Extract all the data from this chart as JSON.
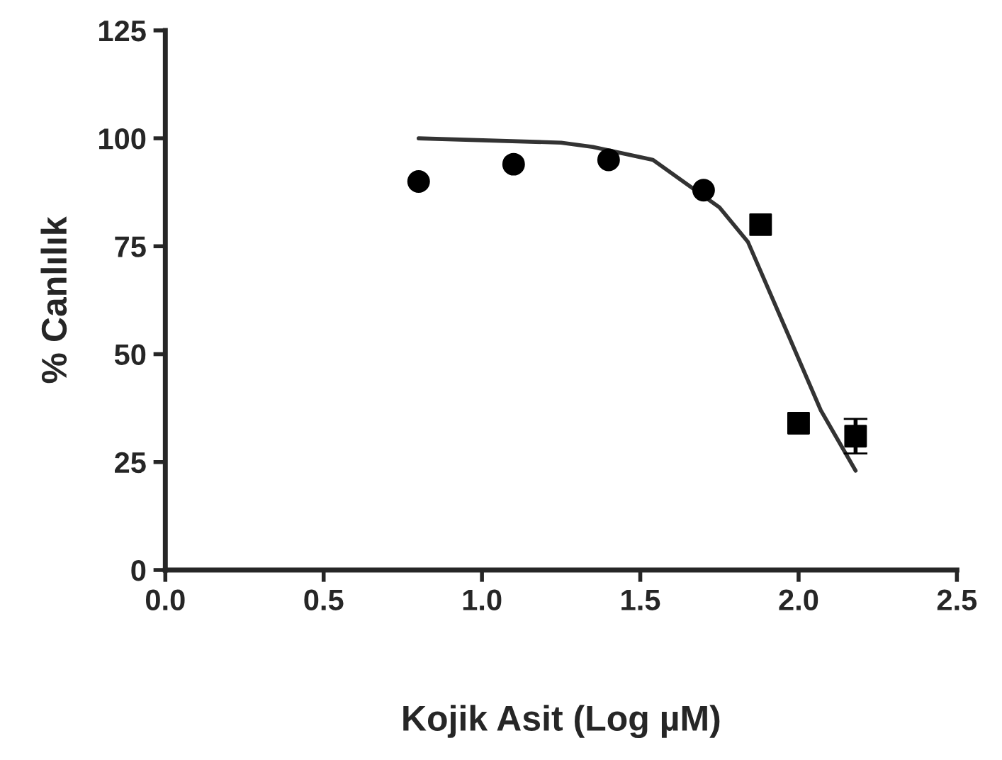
{
  "chart_data": {
    "type": "scatter",
    "xlabel": "Kojik Asit (Log µM)",
    "ylabel": "% Canlılık",
    "xlim": [
      0.0,
      2.5
    ],
    "xticks": [
      {
        "value": 0.0,
        "label": "0.0"
      },
      {
        "value": 0.5,
        "label": "0.5"
      },
      {
        "value": 1.0,
        "label": "1.0"
      },
      {
        "value": 1.5,
        "label": "1.5"
      },
      {
        "value": 2.0,
        "label": "2.0"
      },
      {
        "value": 2.5,
        "label": "2.5"
      }
    ],
    "ylim": [
      0,
      125
    ],
    "yticks": [
      0,
      25,
      50,
      75,
      100,
      125
    ],
    "grid": false,
    "legend": false,
    "series": [
      {
        "type": "line",
        "color": "#333333",
        "marker": "none",
        "x": [
          0.8,
          1.25,
          1.35,
          1.54,
          1.75,
          1.84,
          1.97,
          2.07,
          2.18
        ],
        "values": [
          100,
          99,
          98,
          95,
          84,
          76,
          54,
          37,
          23
        ]
      },
      {
        "color": "#000000",
        "marker": "circle",
        "x": [
          0.8,
          1.1,
          1.4,
          1.7
        ],
        "values": [
          90,
          94,
          95,
          88
        ]
      },
      {
        "color": "#000000",
        "marker": "square",
        "x": [
          1.88,
          2.0,
          2.18
        ],
        "values": [
          80,
          34,
          31
        ],
        "errors": [
          null,
          null,
          4
        ]
      }
    ]
  }
}
